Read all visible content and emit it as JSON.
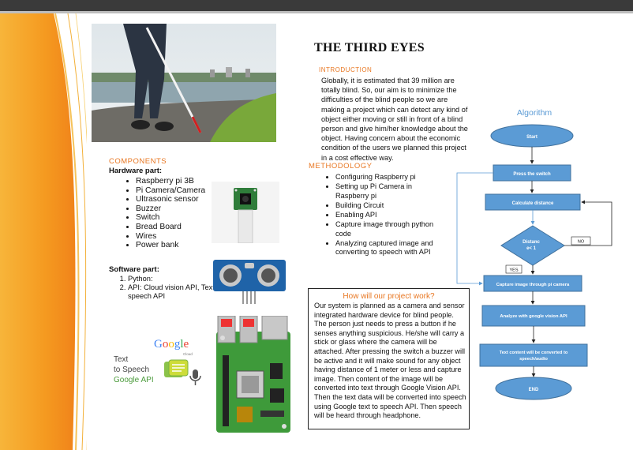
{
  "title": "THE THIRD EYES",
  "intro": {
    "heading": "INTRODUCTION",
    "text": "Globally, it is estimated that 39 million are totally blind. So, our aim is to minimize the difficulties of the blind people so we are making a project which can detect any kind of object either moving or still in front of a blind person and give him/her knowledge about the object. Having concern about the economic condition of the users we planned this project in a cost effective way."
  },
  "components": {
    "heading": "COMPONENTS",
    "hardware_heading": "Hardware part:",
    "hardware": [
      "Raspberry pi 3B",
      "Pi Camera/Camera",
      "Ultrasonic sensor",
      "Buzzer",
      "Switch",
      "Bread Board",
      "Wires",
      "Power bank"
    ],
    "software_heading": "Software part:",
    "software": [
      "Python:",
      "API: Cloud vision API, Text to speech API"
    ]
  },
  "methodology": {
    "heading": "METHODOLOGY",
    "items": [
      "Configuring Raspberry pi",
      "Setting up Pi Camera in Raspberry pi",
      "Building Circuit",
      "Enabling API",
      "Capture image through python code",
      "Analyzing captured image and converting to speech with API"
    ]
  },
  "work": {
    "heading": "How will our project work?",
    "text": "Our system is planned as a camera and sensor integrated hardware device for blind people. The person just needs to press a button if he senses anything suspicious. He/she will carry a stick or glass where the camera will be attached. After pressing the switch a buzzer will be active and it will make sound for any object having distance of 1 meter or less and capture image. Then content of the image will be converted into text through Google Vision API. Then the text data will be converted into speech using Google text to speech API. Then speech will be heard through headphone."
  },
  "algorithm": {
    "title": "Algorithm",
    "start": "Start",
    "press": "Press the switch",
    "calc": "Calculate distance",
    "decision_line1": "Distanc",
    "decision_line2": "e< 1",
    "no": "NO",
    "yes": "YES",
    "capture": "Capture image through pi camera",
    "analyze": "Analyze with google vision API",
    "convert_line1": "Text content will be converted to",
    "convert_line2": "speech/audio",
    "end": "END"
  },
  "google_logo": {
    "brand": "Google",
    "sub": "Cloud",
    "line1": "Text",
    "line2": "to Speech",
    "line3": "Google API"
  },
  "colors": {
    "orange": "#e87722",
    "flow_fill": "#5b9bd5",
    "flow_stroke": "#41719c",
    "algo_title": "#5b9bd5"
  }
}
